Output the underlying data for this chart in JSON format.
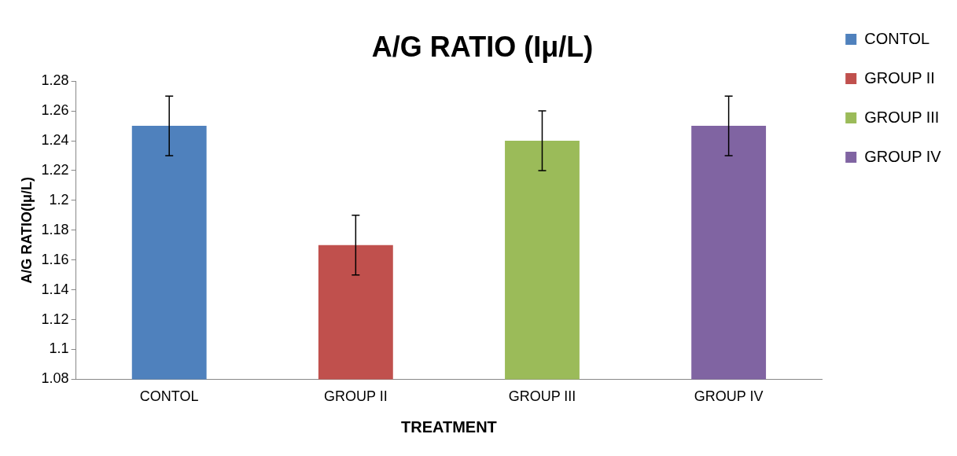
{
  "chart_data": {
    "type": "bar",
    "title": "A/G RATIO (Iμ/L)",
    "xlabel": "TREATMENT",
    "ylabel": "A/G RATIO(Iμ/L)",
    "categories": [
      "CONTOL",
      "GROUP II",
      "GROUP III",
      "GROUP IV"
    ],
    "series": [
      {
        "name": "CONTOL",
        "color": "#4f81bd",
        "values": [
          1.25,
          null,
          null,
          null
        ],
        "errors": [
          0.02,
          null,
          null,
          null
        ]
      },
      {
        "name": "GROUP II",
        "color": "#c0504d",
        "values": [
          null,
          1.17,
          null,
          null
        ],
        "errors": [
          null,
          0.02,
          null,
          null
        ]
      },
      {
        "name": "GROUP III",
        "color": "#9bbb59",
        "values": [
          null,
          null,
          1.24,
          null
        ],
        "errors": [
          null,
          null,
          0.02,
          null
        ]
      },
      {
        "name": "GROUP IV",
        "color": "#8064a2",
        "values": [
          null,
          null,
          null,
          1.25
        ],
        "errors": [
          null,
          null,
          null,
          0.02
        ]
      }
    ],
    "ylim": [
      1.08,
      1.28
    ],
    "yticks": [
      1.08,
      1.1,
      1.12,
      1.14,
      1.16,
      1.18,
      1.2,
      1.22,
      1.24,
      1.26,
      1.28
    ],
    "grid": false,
    "legend": "top right"
  }
}
